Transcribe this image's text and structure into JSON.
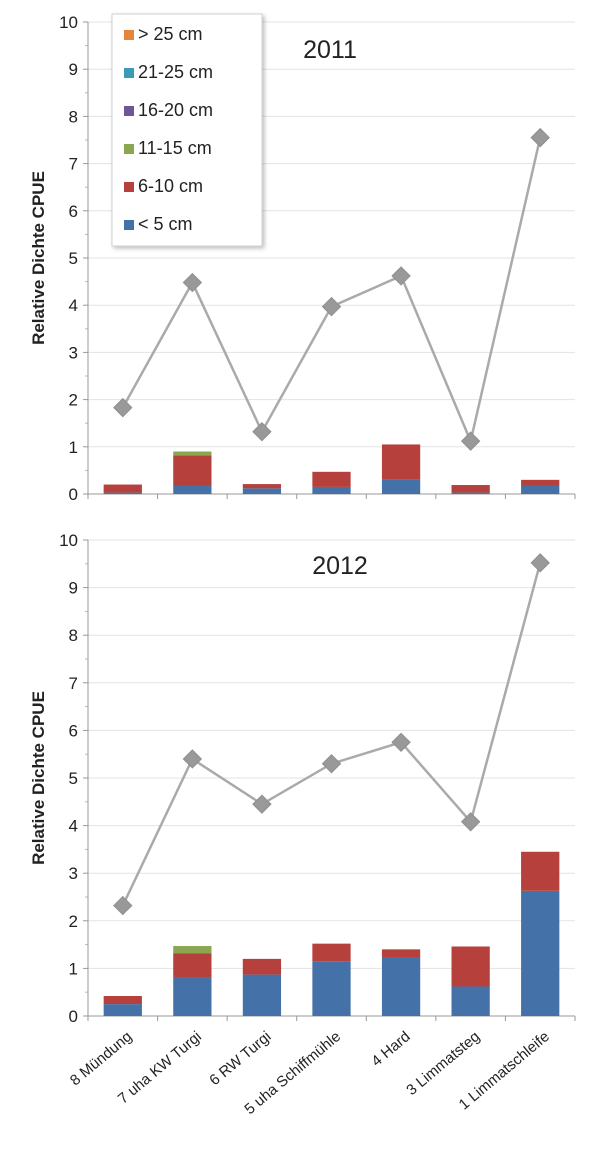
{
  "chart_data": [
    {
      "type": "bar",
      "stacked": true,
      "title": "2011",
      "ylabel": "Relative Dichte CPUE",
      "ylim": [
        0,
        10
      ],
      "yticks": [
        0,
        1,
        2,
        3,
        4,
        5,
        6,
        7,
        8,
        9,
        10
      ],
      "grid": true,
      "legend": "top-left",
      "categories": [
        "8 Mündung",
        "7 uha KW Turgi",
        "6 RW Turgi",
        "5 uha Schiffmühle",
        "4 Hard",
        "3 Limmatsteg",
        "1 Limmatschleife"
      ],
      "series": [
        {
          "name": "< 5 cm",
          "color": "#4472a8",
          "values": [
            0.03,
            0.17,
            0.12,
            0.15,
            0.3,
            0.03,
            0.17
          ]
        },
        {
          "name": "6-10 cm",
          "color": "#b5403c",
          "values": [
            0.17,
            0.65,
            0.09,
            0.32,
            0.75,
            0.16,
            0.13
          ]
        },
        {
          "name": "11-15 cm",
          "color": "#8aa650",
          "values": [
            0,
            0.08,
            0,
            0,
            0,
            0,
            0
          ]
        },
        {
          "name": "16-20 cm",
          "color": "#6e5597",
          "values": [
            0,
            0,
            0,
            0,
            0,
            0,
            0
          ]
        },
        {
          "name": "21-25 cm",
          "color": "#3a9bb5",
          "values": [
            0,
            0,
            0,
            0,
            0,
            0,
            0
          ]
        },
        {
          "name": "> 25 cm",
          "color": "#e6853a",
          "values": [
            0,
            0,
            0,
            0,
            0,
            0,
            0
          ]
        }
      ],
      "line": {
        "color": "#aaaaaa",
        "marker": "diamond",
        "values": [
          1.83,
          4.48,
          1.32,
          3.97,
          4.62,
          1.12,
          7.55
        ]
      }
    },
    {
      "type": "bar",
      "stacked": true,
      "title": "2012",
      "ylabel": "Relative Dichte CPUE",
      "ylim": [
        0,
        10
      ],
      "yticks": [
        0,
        1,
        2,
        3,
        4,
        5,
        6,
        7,
        8,
        9,
        10
      ],
      "grid": true,
      "categories": [
        "8 Mündung",
        "7 uha KW Turgi",
        "6 RW Turgi",
        "5 uha Schiffmühle",
        "4 Hard",
        "3 Limmatsteg",
        "1 Limmatschleife"
      ],
      "series": [
        {
          "name": "< 5 cm",
          "color": "#4472a8",
          "values": [
            0.25,
            0.8,
            0.87,
            1.15,
            1.22,
            0.62,
            2.63
          ]
        },
        {
          "name": "6-10 cm",
          "color": "#b5403c",
          "values": [
            0.17,
            0.52,
            0.33,
            0.37,
            0.18,
            0.84,
            0.82
          ]
        },
        {
          "name": "11-15 cm",
          "color": "#8aa650",
          "values": [
            0,
            0.15,
            0,
            0,
            0,
            0,
            0
          ]
        },
        {
          "name": "16-20 cm",
          "color": "#6e5597",
          "values": [
            0,
            0,
            0,
            0,
            0,
            0,
            0
          ]
        },
        {
          "name": "21-25 cm",
          "color": "#3a9bb5",
          "values": [
            0,
            0,
            0,
            0,
            0,
            0,
            0
          ]
        },
        {
          "name": "> 25 cm",
          "color": "#e6853a",
          "values": [
            0,
            0,
            0,
            0,
            0,
            0,
            0
          ]
        }
      ],
      "line": {
        "color": "#aaaaaa",
        "marker": "diamond",
        "values": [
          2.32,
          5.4,
          4.45,
          5.3,
          5.75,
          4.08,
          9.52
        ]
      }
    }
  ]
}
